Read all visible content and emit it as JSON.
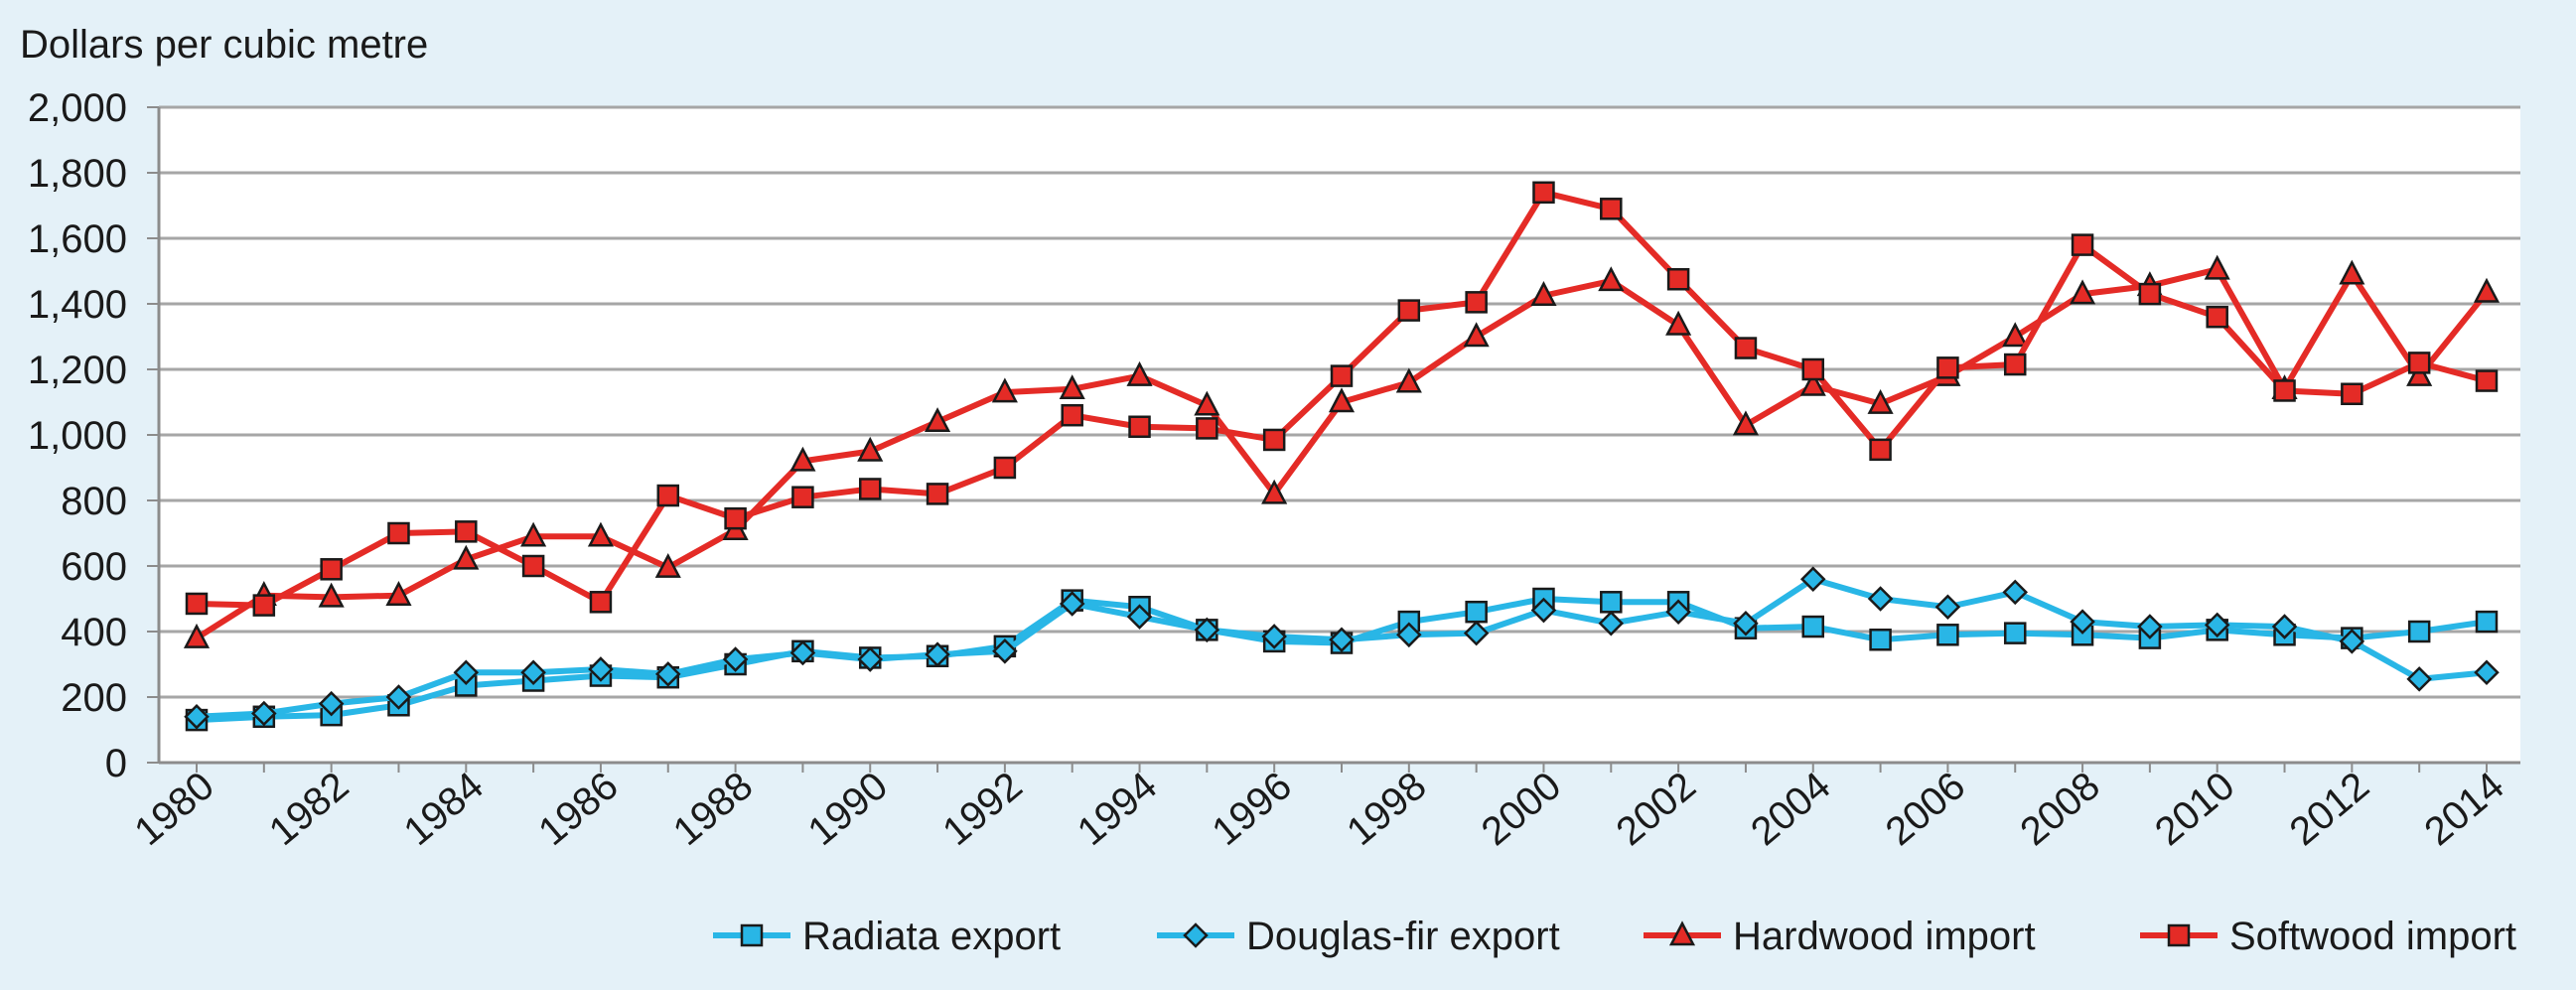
{
  "chart_data": {
    "type": "line",
    "title": "",
    "ylabel": "Dollars per cubic metre",
    "xlabel": "",
    "ylim": [
      0,
      2000
    ],
    "yticks": [
      0,
      200,
      400,
      600,
      800,
      1000,
      1200,
      1400,
      1600,
      1800,
      2000
    ],
    "ytick_labels": [
      "0",
      "200",
      "400",
      "600",
      "800",
      "1,000",
      "1,200",
      "1,400",
      "1,600",
      "1,800",
      "2,000"
    ],
    "x": [
      1980,
      1981,
      1982,
      1983,
      1984,
      1985,
      1986,
      1987,
      1988,
      1989,
      1990,
      1991,
      1992,
      1993,
      1994,
      1995,
      1996,
      1997,
      1998,
      1999,
      2000,
      2001,
      2002,
      2003,
      2004,
      2005,
      2006,
      2007,
      2008,
      2009,
      2010,
      2011,
      2012,
      2013,
      2014
    ],
    "xticks": [
      1980,
      1982,
      1984,
      1986,
      1988,
      1990,
      1992,
      1994,
      1996,
      1998,
      2000,
      2002,
      2004,
      2006,
      2008,
      2010,
      2012,
      2014
    ],
    "xtick_labels": [
      "1980",
      "1982",
      "1984",
      "1986",
      "1988",
      "1990",
      "1992",
      "1994",
      "1996",
      "1998",
      "2000",
      "2002",
      "2004",
      "2006",
      "2008",
      "2010",
      "2012",
      "2014"
    ],
    "grid": "horizontal",
    "legend_position": "bottom-right",
    "series": [
      {
        "name": "Radiata export",
        "color": "#29b6e6",
        "marker": "square",
        "values": [
          130,
          140,
          145,
          175,
          235,
          250,
          265,
          260,
          300,
          340,
          320,
          325,
          355,
          495,
          475,
          405,
          370,
          365,
          430,
          460,
          500,
          490,
          490,
          410,
          415,
          375,
          390,
          395,
          390,
          380,
          405,
          390,
          380,
          400,
          430
        ]
      },
      {
        "name": "Douglas-fir export",
        "color": "#29b6e6",
        "marker": "diamond",
        "values": [
          140,
          150,
          180,
          200,
          275,
          275,
          285,
          270,
          315,
          335,
          315,
          330,
          340,
          485,
          445,
          405,
          385,
          375,
          390,
          395,
          465,
          425,
          460,
          425,
          560,
          500,
          475,
          520,
          430,
          415,
          420,
          415,
          370,
          255,
          275
        ]
      },
      {
        "name": "Hardwood import",
        "color": "#e42b26",
        "marker": "triangle",
        "values": [
          380,
          510,
          505,
          510,
          620,
          690,
          690,
          595,
          710,
          920,
          950,
          1040,
          1130,
          1140,
          1180,
          1090,
          820,
          1100,
          1160,
          1300,
          1425,
          1470,
          1335,
          1030,
          1150,
          1095,
          1180,
          1300,
          1430,
          1455,
          1505,
          1140,
          1490,
          1180,
          1435
        ]
      },
      {
        "name": "Softwood import",
        "color": "#e42b26",
        "marker": "square",
        "values": [
          485,
          480,
          590,
          700,
          705,
          600,
          490,
          815,
          745,
          810,
          835,
          820,
          900,
          1060,
          1025,
          1020,
          985,
          1180,
          1380,
          1405,
          1740,
          1690,
          1475,
          1265,
          1200,
          955,
          1205,
          1215,
          1580,
          1430,
          1360,
          1135,
          1125,
          1220,
          1165
        ]
      }
    ]
  }
}
